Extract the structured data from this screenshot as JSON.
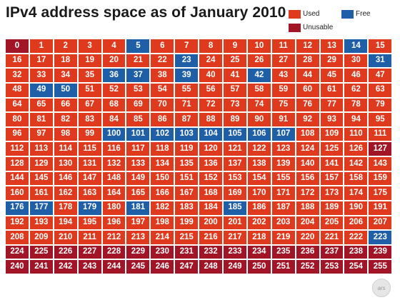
{
  "title": "IPv4 address space as of January 2010",
  "legend": {
    "used": "Used",
    "free": "Free",
    "unusable": "Unusable"
  },
  "colors": {
    "used": "#e03a1e",
    "free": "#1f5fa8",
    "unusable": "#a11527"
  },
  "logo_text": "ars",
  "blocks": {
    "count": 256,
    "free": [
      5,
      14,
      23,
      31,
      36,
      37,
      39,
      42,
      49,
      50,
      100,
      101,
      102,
      103,
      104,
      105,
      106,
      107,
      176,
      177,
      179,
      181,
      185,
      223
    ],
    "unusable": [
      0,
      127,
      224,
      225,
      226,
      227,
      228,
      229,
      230,
      231,
      232,
      233,
      234,
      235,
      236,
      237,
      238,
      239,
      240,
      241,
      242,
      243,
      244,
      245,
      246,
      247,
      248,
      249,
      250,
      251,
      252,
      253,
      254,
      255
    ]
  }
}
